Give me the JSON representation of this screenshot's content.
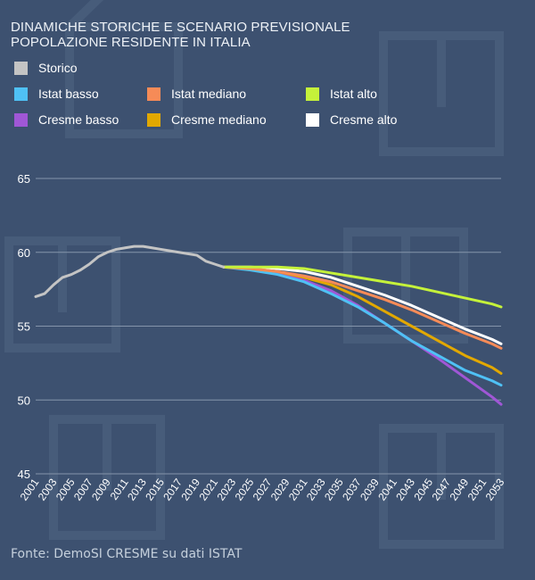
{
  "title_line1": "DINAMICHE STORICHE E SCENARIO PREVISIONALE",
  "title_line2": "POPOLAZIONE RESIDENTE IN ITALIA",
  "footer": "Fonte: DemoSI CRESME su dati ISTAT",
  "chart_data": {
    "type": "line",
    "title": "DINAMICHE STORICHE E SCENARIO PREVISIONALE POPOLAZIONE RESIDENTE IN ITALIA",
    "xlabel": "",
    "ylabel": "",
    "ylim": [
      45,
      65
    ],
    "yticks": [
      45,
      50,
      55,
      60,
      65
    ],
    "xticks": [
      2001,
      2003,
      2005,
      2007,
      2009,
      2011,
      2013,
      2015,
      2017,
      2019,
      2021,
      2023,
      2025,
      2027,
      2029,
      2031,
      2033,
      2035,
      2037,
      2039,
      2041,
      2043,
      2045,
      2047,
      2049,
      2051,
      2053
    ],
    "grid": "horizontal",
    "legend_position": "top",
    "series": [
      {
        "name": "Storico",
        "color": "#c4c4c4",
        "x": [
          2001,
          2002,
          2003,
          2004,
          2005,
          2006,
          2007,
          2008,
          2009,
          2010,
          2011,
          2012,
          2013,
          2014,
          2015,
          2016,
          2017,
          2018,
          2019,
          2020,
          2021,
          2022
        ],
        "values": [
          57.0,
          57.2,
          57.8,
          58.3,
          58.5,
          58.8,
          59.2,
          59.7,
          60.0,
          60.2,
          60.3,
          60.4,
          60.4,
          60.3,
          60.2,
          60.1,
          60.0,
          59.9,
          59.8,
          59.4,
          59.2,
          59.0
        ]
      },
      {
        "name": "Istat basso",
        "color": "#4fc1f5",
        "x": [
          2022,
          2025,
          2028,
          2031,
          2034,
          2037,
          2040,
          2043,
          2046,
          2049,
          2052,
          2053
        ],
        "values": [
          59.0,
          58.8,
          58.5,
          58.0,
          57.2,
          56.3,
          55.2,
          54.0,
          53.0,
          52.0,
          51.3,
          51.0
        ]
      },
      {
        "name": "Istat mediano",
        "color": "#f68b57",
        "x": [
          2022,
          2025,
          2028,
          2031,
          2034,
          2037,
          2040,
          2043,
          2046,
          2049,
          2052,
          2053
        ],
        "values": [
          59.0,
          58.9,
          58.7,
          58.4,
          58.0,
          57.4,
          56.8,
          56.1,
          55.3,
          54.5,
          53.8,
          53.5
        ]
      },
      {
        "name": "Istat alto",
        "color": "#c5f23a",
        "x": [
          2022,
          2025,
          2028,
          2031,
          2034,
          2037,
          2040,
          2043,
          2046,
          2049,
          2052,
          2053
        ],
        "values": [
          59.0,
          59.0,
          59.0,
          58.9,
          58.6,
          58.3,
          58.0,
          57.7,
          57.3,
          56.9,
          56.5,
          56.3
        ]
      },
      {
        "name": "Cresme basso",
        "color": "#a057d6",
        "x": [
          2022,
          2025,
          2028,
          2031,
          2034,
          2037,
          2040,
          2043,
          2046,
          2049,
          2052,
          2053
        ],
        "values": [
          59.0,
          58.9,
          58.6,
          58.1,
          57.4,
          56.4,
          55.2,
          54.0,
          52.8,
          51.5,
          50.2,
          49.7
        ]
      },
      {
        "name": "Cresme mediano",
        "color": "#e2a800",
        "x": [
          2022,
          2025,
          2028,
          2031,
          2034,
          2037,
          2040,
          2043,
          2046,
          2049,
          2052,
          2053
        ],
        "values": [
          59.0,
          58.9,
          58.7,
          58.3,
          57.8,
          57.0,
          56.0,
          55.0,
          54.0,
          53.0,
          52.2,
          51.8
        ]
      },
      {
        "name": "Cresme alto",
        "color": "#ffffff",
        "x": [
          2022,
          2025,
          2028,
          2031,
          2034,
          2037,
          2040,
          2043,
          2046,
          2049,
          2052,
          2053
        ],
        "values": [
          59.0,
          59.0,
          58.9,
          58.7,
          58.3,
          57.7,
          57.1,
          56.4,
          55.6,
          54.8,
          54.1,
          53.8
        ]
      }
    ]
  }
}
